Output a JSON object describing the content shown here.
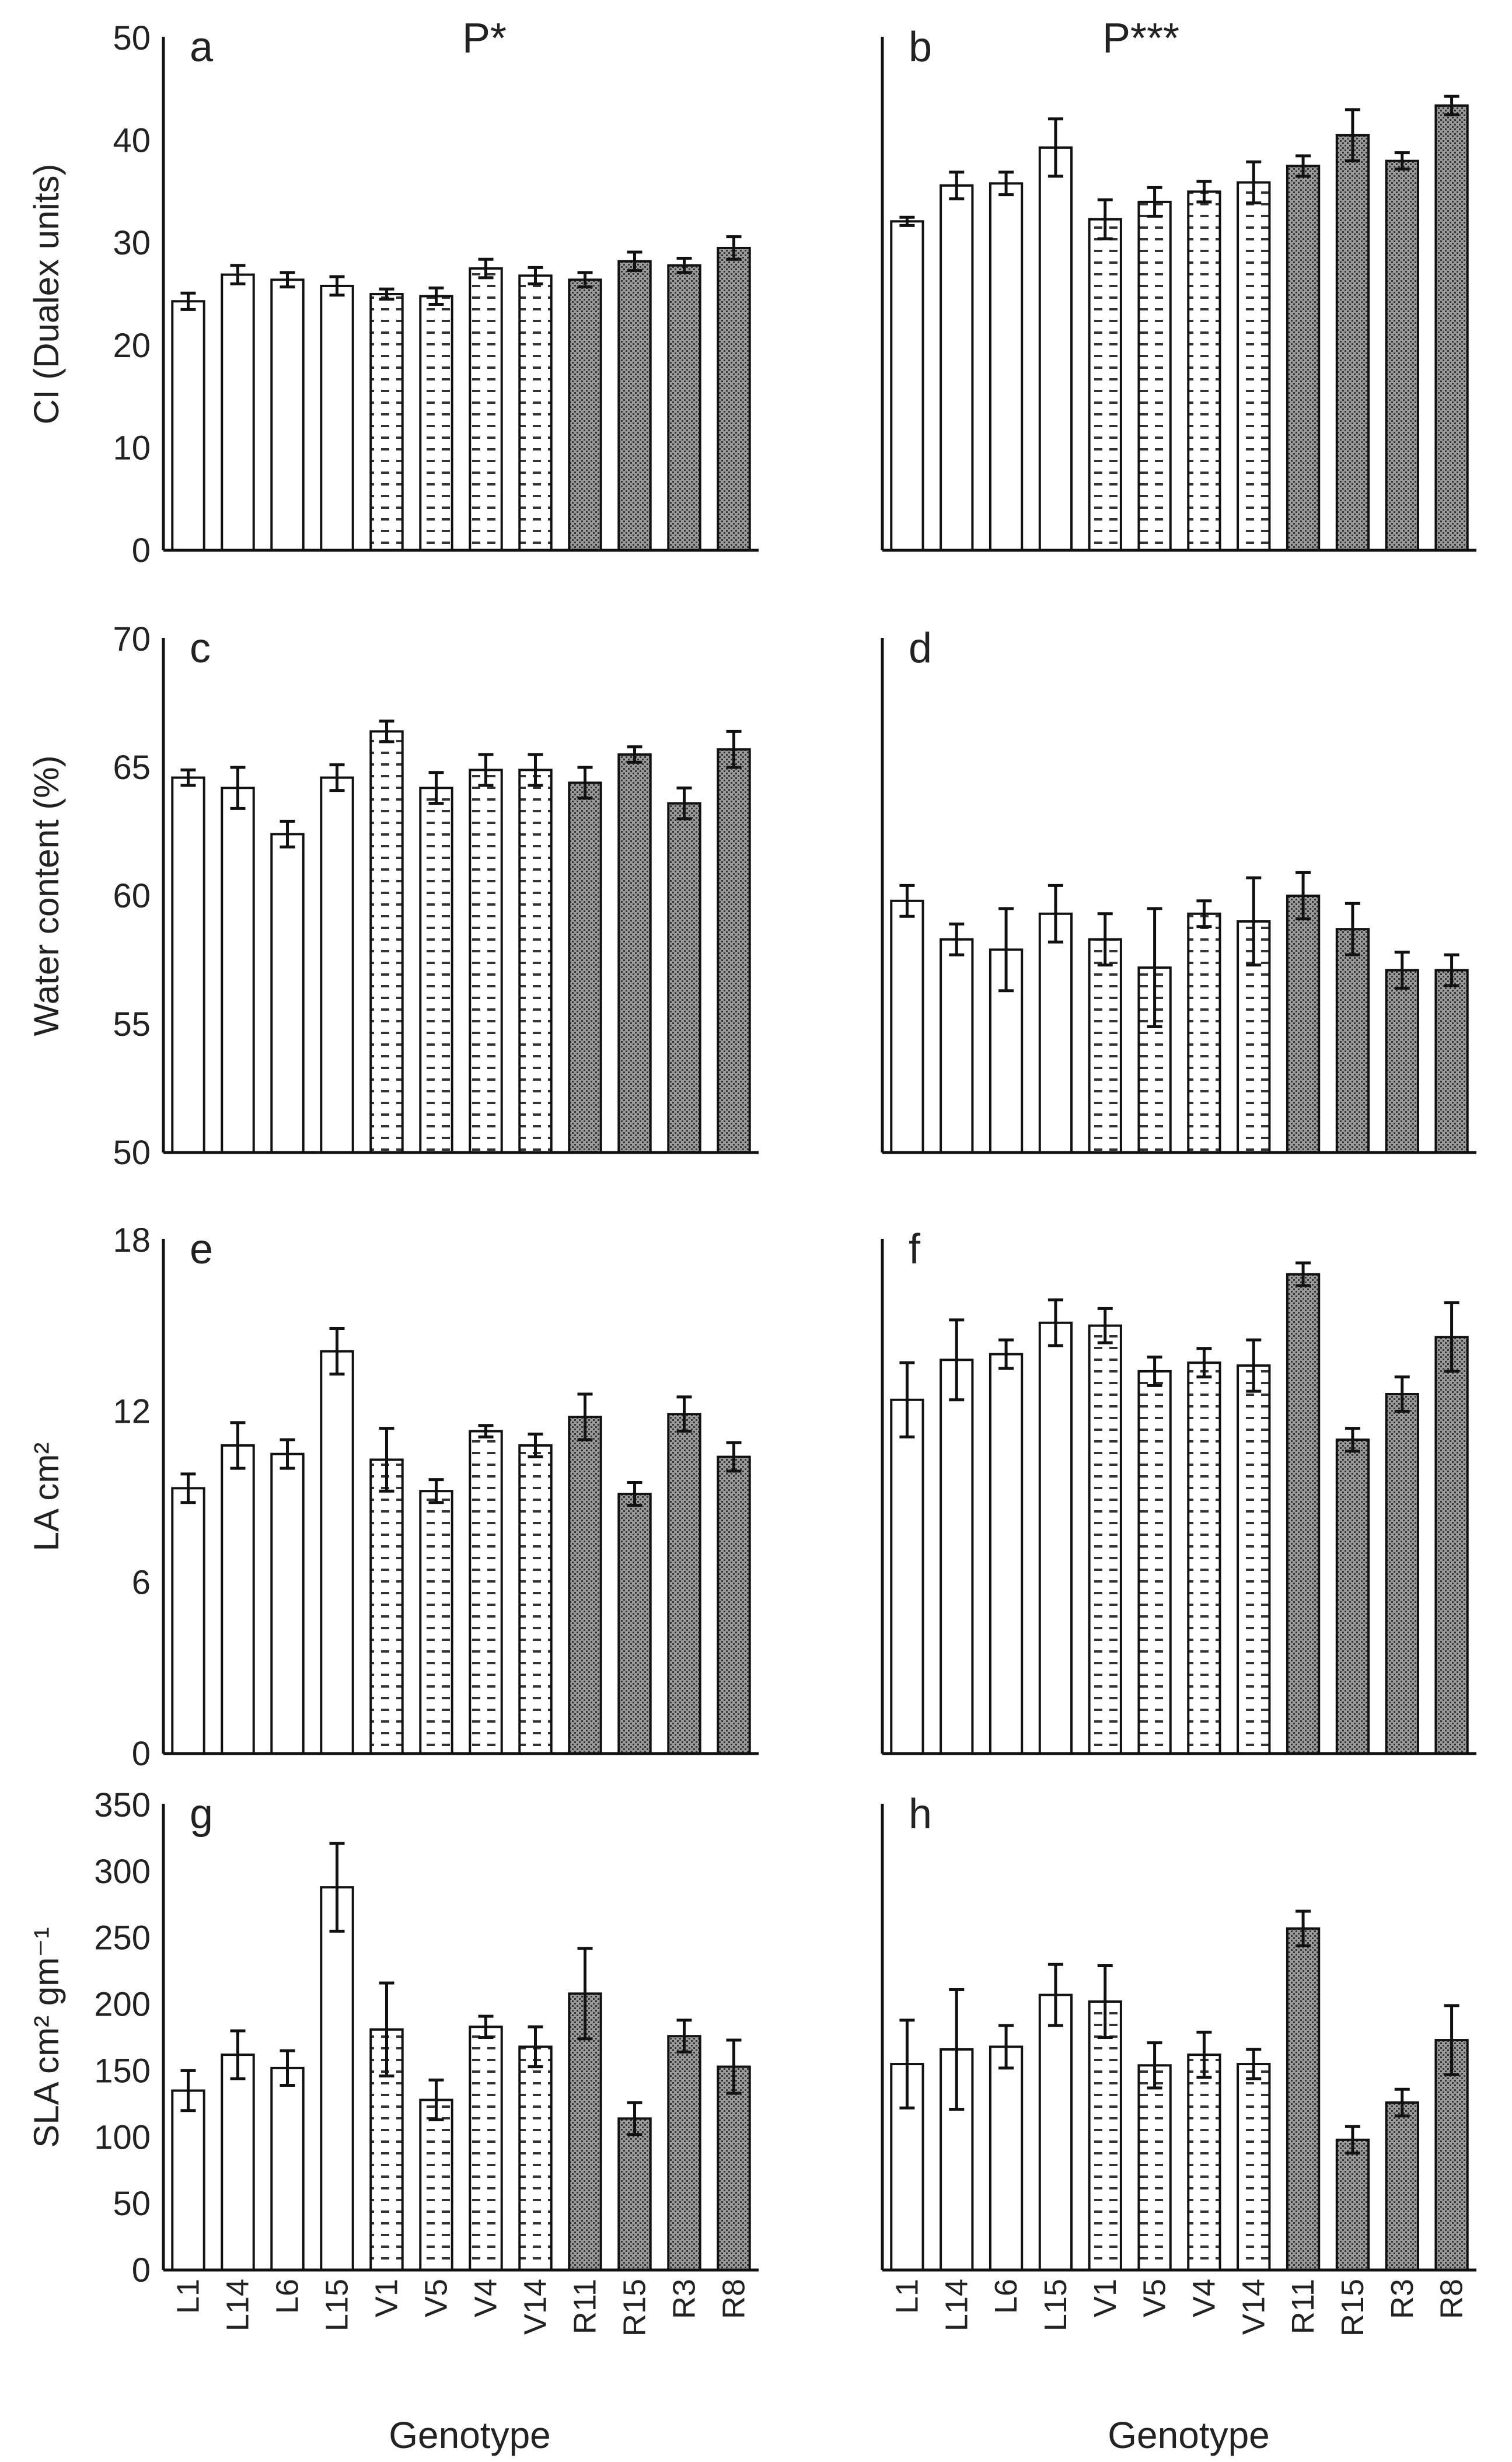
{
  "figure": {
    "x_axis_title": "Genotype",
    "group_fill_colors": {
      "L": "#ffffff",
      "V": "#ffffff",
      "R": "#8a8a8a"
    },
    "group_patterns": {
      "L": "none",
      "V": "dashes",
      "R": "dots"
    }
  },
  "chart_data": [
    {
      "type": "bar",
      "panel_label": "a",
      "significance": "P*",
      "ylabel": "CI (Dualex units)",
      "ylim": [
        0,
        50
      ],
      "yticks": [
        0,
        10,
        20,
        30,
        40,
        50
      ],
      "categories": [
        "L1",
        "L14",
        "L6",
        "L15",
        "V1",
        "V5",
        "V4",
        "V14",
        "R11",
        "R15",
        "R3",
        "R8"
      ],
      "groups": [
        "L",
        "L",
        "L",
        "L",
        "V",
        "V",
        "V",
        "V",
        "R",
        "R",
        "R",
        "R"
      ],
      "values": [
        24.3,
        26.9,
        26.4,
        25.8,
        25.0,
        24.8,
        27.5,
        26.8,
        26.4,
        28.2,
        27.8,
        29.5
      ],
      "errors": [
        0.8,
        0.9,
        0.7,
        0.9,
        0.5,
        0.8,
        0.9,
        0.8,
        0.7,
        0.9,
        0.7,
        1.1
      ]
    },
    {
      "type": "bar",
      "panel_label": "b",
      "significance": "P***",
      "ylabel": "",
      "ylim": [
        0,
        50
      ],
      "yticks": [
        0,
        10,
        20,
        30,
        40,
        50
      ],
      "categories": [
        "L1",
        "L14",
        "L6",
        "L15",
        "V1",
        "V5",
        "V4",
        "V14",
        "R11",
        "R15",
        "R3",
        "R8"
      ],
      "groups": [
        "L",
        "L",
        "L",
        "L",
        "V",
        "V",
        "V",
        "V",
        "R",
        "R",
        "R",
        "R"
      ],
      "values": [
        32.1,
        35.6,
        35.8,
        39.3,
        32.3,
        34.0,
        35.0,
        35.9,
        37.5,
        40.5,
        38.0,
        43.4
      ],
      "errors": [
        0.4,
        1.3,
        1.1,
        2.8,
        1.9,
        1.4,
        1.0,
        2.0,
        1.0,
        2.5,
        0.8,
        0.9
      ]
    },
    {
      "type": "bar",
      "panel_label": "c",
      "significance": "",
      "ylabel": "Water content (%)",
      "ylim": [
        50,
        70
      ],
      "yticks": [
        50,
        55,
        60,
        65,
        70
      ],
      "categories": [
        "L1",
        "L14",
        "L6",
        "L15",
        "V1",
        "V5",
        "V4",
        "V14",
        "R11",
        "R15",
        "R3",
        "R8"
      ],
      "groups": [
        "L",
        "L",
        "L",
        "L",
        "V",
        "V",
        "V",
        "V",
        "R",
        "R",
        "R",
        "R"
      ],
      "values": [
        64.6,
        64.2,
        62.4,
        64.6,
        66.4,
        64.2,
        64.9,
        64.9,
        64.4,
        65.5,
        63.6,
        65.7
      ],
      "errors": [
        0.3,
        0.8,
        0.5,
        0.5,
        0.4,
        0.6,
        0.6,
        0.6,
        0.6,
        0.3,
        0.6,
        0.7
      ]
    },
    {
      "type": "bar",
      "panel_label": "d",
      "significance": "",
      "ylabel": "",
      "ylim": [
        50,
        70
      ],
      "yticks": [
        50,
        55,
        60,
        65,
        70
      ],
      "categories": [
        "L1",
        "L14",
        "L6",
        "L15",
        "V1",
        "V5",
        "V4",
        "V14",
        "R11",
        "R15",
        "R3",
        "R8"
      ],
      "groups": [
        "L",
        "L",
        "L",
        "L",
        "V",
        "V",
        "V",
        "V",
        "R",
        "R",
        "R",
        "R"
      ],
      "values": [
        59.8,
        58.3,
        57.9,
        59.3,
        58.3,
        57.2,
        59.3,
        59.0,
        60.0,
        58.7,
        57.1,
        57.1
      ],
      "errors": [
        0.6,
        0.6,
        1.6,
        1.1,
        1.0,
        2.3,
        0.5,
        1.7,
        0.9,
        1.0,
        0.7,
        0.6
      ]
    },
    {
      "type": "bar",
      "panel_label": "e",
      "significance": "",
      "ylabel": "LA cm²",
      "ylim": [
        0,
        18
      ],
      "yticks": [
        0,
        6,
        12,
        18
      ],
      "categories": [
        "L1",
        "L14",
        "L6",
        "L15",
        "V1",
        "V5",
        "V4",
        "V14",
        "R11",
        "R15",
        "R3",
        "R8"
      ],
      "groups": [
        "L",
        "L",
        "L",
        "L",
        "V",
        "V",
        "V",
        "V",
        "R",
        "R",
        "R",
        "R"
      ],
      "values": [
        9.3,
        10.8,
        10.5,
        14.1,
        10.3,
        9.2,
        11.3,
        10.8,
        11.8,
        9.1,
        11.9,
        10.4
      ],
      "errors": [
        0.5,
        0.8,
        0.5,
        0.8,
        1.1,
        0.4,
        0.2,
        0.4,
        0.8,
        0.4,
        0.6,
        0.5
      ]
    },
    {
      "type": "bar",
      "panel_label": "f",
      "significance": "",
      "ylabel": "",
      "ylim": [
        0,
        18
      ],
      "yticks": [
        0,
        6,
        12,
        18
      ],
      "categories": [
        "L1",
        "L14",
        "L6",
        "L15",
        "V1",
        "V5",
        "V4",
        "V14",
        "R11",
        "R15",
        "R3",
        "R8"
      ],
      "groups": [
        "L",
        "L",
        "L",
        "L",
        "V",
        "V",
        "V",
        "V",
        "R",
        "R",
        "R",
        "R"
      ],
      "values": [
        12.4,
        13.8,
        14.0,
        15.1,
        15.0,
        13.4,
        13.7,
        13.6,
        16.8,
        11.0,
        12.6,
        14.6
      ],
      "errors": [
        1.3,
        1.4,
        0.5,
        0.8,
        0.6,
        0.5,
        0.5,
        0.9,
        0.4,
        0.4,
        0.6,
        1.2
      ]
    },
    {
      "type": "bar",
      "panel_label": "g",
      "significance": "",
      "ylabel": "SLA cm² gm⁻¹",
      "ylim": [
        0,
        350
      ],
      "yticks": [
        0,
        50,
        100,
        150,
        200,
        250,
        300,
        350
      ],
      "categories": [
        "L1",
        "L14",
        "L6",
        "L15",
        "V1",
        "V5",
        "V4",
        "V14",
        "R11",
        "R15",
        "R3",
        "R8"
      ],
      "groups": [
        "L",
        "L",
        "L",
        "L",
        "V",
        "V",
        "V",
        "V",
        "R",
        "R",
        "R",
        "R"
      ],
      "values": [
        135,
        162,
        152,
        288,
        181,
        128,
        183,
        168,
        208,
        114,
        176,
        153
      ],
      "errors": [
        15,
        18,
        13,
        33,
        35,
        15,
        8,
        15,
        34,
        12,
        12,
        20
      ]
    },
    {
      "type": "bar",
      "panel_label": "h",
      "significance": "",
      "ylabel": "",
      "ylim": [
        0,
        350
      ],
      "yticks": [
        0,
        50,
        100,
        150,
        200,
        250,
        300,
        350
      ],
      "categories": [
        "L1",
        "L14",
        "L6",
        "L15",
        "V1",
        "V5",
        "V4",
        "V14",
        "R11",
        "R15",
        "R3",
        "R8"
      ],
      "groups": [
        "L",
        "L",
        "L",
        "L",
        "V",
        "V",
        "V",
        "V",
        "R",
        "R",
        "R",
        "R"
      ],
      "values": [
        155,
        166,
        168,
        207,
        202,
        154,
        162,
        155,
        257,
        98,
        126,
        173
      ],
      "errors": [
        33,
        45,
        16,
        23,
        27,
        17,
        17,
        11,
        13,
        10,
        10,
        26
      ]
    }
  ]
}
